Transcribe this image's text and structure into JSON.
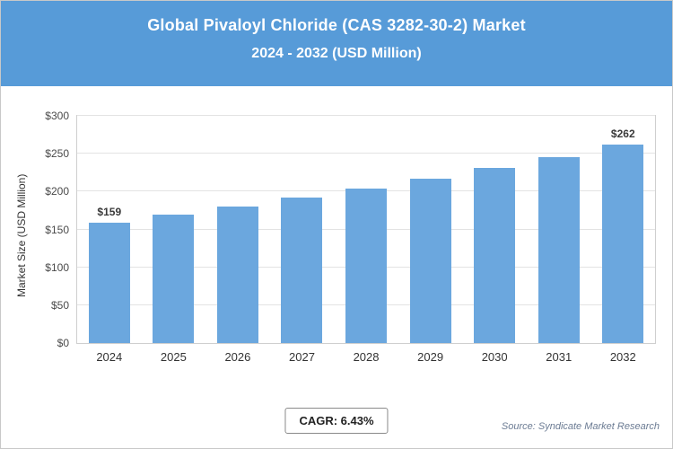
{
  "header": {
    "title_line1": "Global Pivaloyl Chloride (CAS 3282-30-2) Market",
    "title_line2": "2024 - 2032 (USD Million)",
    "bg_color": "#579bd8",
    "text_color": "#ffffff"
  },
  "chart_data": {
    "type": "bar",
    "title": "Global Pivaloyl Chloride (CAS 3282-30-2) Market 2024 - 2032 (USD Million)",
    "categories": [
      "2024",
      "2025",
      "2026",
      "2027",
      "2028",
      "2029",
      "2030",
      "2031",
      "2032"
    ],
    "values": [
      159,
      169,
      180,
      192,
      204,
      217,
      231,
      246,
      262
    ],
    "bar_labels": [
      "$159",
      null,
      null,
      null,
      null,
      null,
      null,
      null,
      "$262"
    ],
    "xlabel": "",
    "ylabel": "Market Size (USD Million)",
    "ylim": [
      0,
      300
    ],
    "ytick_values": [
      0,
      50,
      100,
      150,
      200,
      250,
      300
    ],
    "yticks": [
      "$0",
      "$50",
      "$100",
      "$150",
      "$200",
      "$250",
      "$300"
    ],
    "bar_color": "#6ba7de",
    "grid": true,
    "legend": "none"
  },
  "footer": {
    "cagr_label": "CAGR: 6.43%",
    "source": "Source: Syndicate Market Research"
  }
}
